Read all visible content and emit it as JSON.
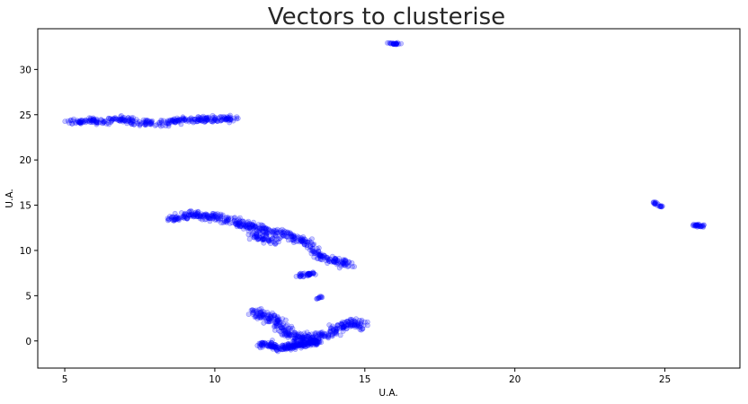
{
  "chart_data": {
    "type": "scatter",
    "title": "Vectors to clusterise",
    "xlabel": "U.A.",
    "ylabel": "U.A.",
    "xlim": [
      4.1,
      27.5
    ],
    "ylim": [
      -3.0,
      34.5
    ],
    "xticks": [
      5,
      10,
      15,
      20,
      25
    ],
    "yticks": [
      0,
      5,
      10,
      15,
      20,
      25,
      30
    ],
    "grid": false,
    "legend": "none",
    "marker_color": "#0000ff",
    "marker_alpha": 0.22,
    "clusters": [
      {
        "path": [
          [
            5.2,
            24.1
          ],
          [
            5.8,
            24.4
          ],
          [
            6.4,
            24.2
          ],
          [
            6.8,
            24.6
          ],
          [
            7.4,
            24.1
          ],
          [
            8.2,
            24.1
          ],
          [
            9.0,
            24.4
          ],
          [
            10.0,
            24.5
          ],
          [
            10.7,
            24.5
          ]
        ],
        "count": 340,
        "spread": [
          0.18,
          0.35
        ]
      },
      {
        "path": [
          [
            15.8,
            32.9
          ],
          [
            16.2,
            32.8
          ]
        ],
        "count": 25,
        "spread": [
          0.08,
          0.12
        ]
      },
      {
        "path": [
          [
            8.5,
            13.3
          ],
          [
            9.2,
            14.0
          ],
          [
            10.2,
            13.6
          ],
          [
            11.0,
            12.8
          ],
          [
            11.8,
            12.2
          ],
          [
            12.6,
            11.6
          ],
          [
            13.2,
            10.6
          ],
          [
            13.6,
            9.2
          ],
          [
            14.5,
            8.5
          ]
        ],
        "count": 460,
        "spread": [
          0.2,
          0.45
        ]
      },
      {
        "path": [
          [
            11.2,
            11.7
          ],
          [
            12.0,
            11.0
          ]
        ],
        "count": 60,
        "spread": [
          0.25,
          0.4
        ]
      },
      {
        "path": [
          [
            12.8,
            7.2
          ],
          [
            13.3,
            7.5
          ]
        ],
        "count": 40,
        "spread": [
          0.15,
          0.25
        ]
      },
      {
        "path": [
          [
            13.4,
            4.6
          ],
          [
            13.6,
            4.9
          ]
        ],
        "count": 10,
        "spread": [
          0.05,
          0.1
        ]
      },
      {
        "path": [
          [
            11.3,
            3.2
          ],
          [
            11.9,
            2.6
          ],
          [
            12.4,
            1.0
          ],
          [
            13.0,
            0.0
          ],
          [
            13.8,
            0.8
          ],
          [
            14.5,
            2.0
          ],
          [
            15.0,
            1.8
          ]
        ],
        "count": 380,
        "spread": [
          0.28,
          0.6
        ]
      },
      {
        "path": [
          [
            11.6,
            -0.3
          ],
          [
            12.2,
            -0.8
          ],
          [
            12.8,
            -0.4
          ],
          [
            13.4,
            -0.1
          ]
        ],
        "count": 220,
        "spread": [
          0.2,
          0.35
        ]
      },
      {
        "path": [
          [
            24.6,
            15.3
          ],
          [
            24.9,
            14.8
          ]
        ],
        "count": 20,
        "spread": [
          0.05,
          0.1
        ]
      },
      {
        "path": [
          [
            26.0,
            12.8
          ],
          [
            26.3,
            12.7
          ]
        ],
        "count": 30,
        "spread": [
          0.08,
          0.2
        ]
      }
    ]
  }
}
